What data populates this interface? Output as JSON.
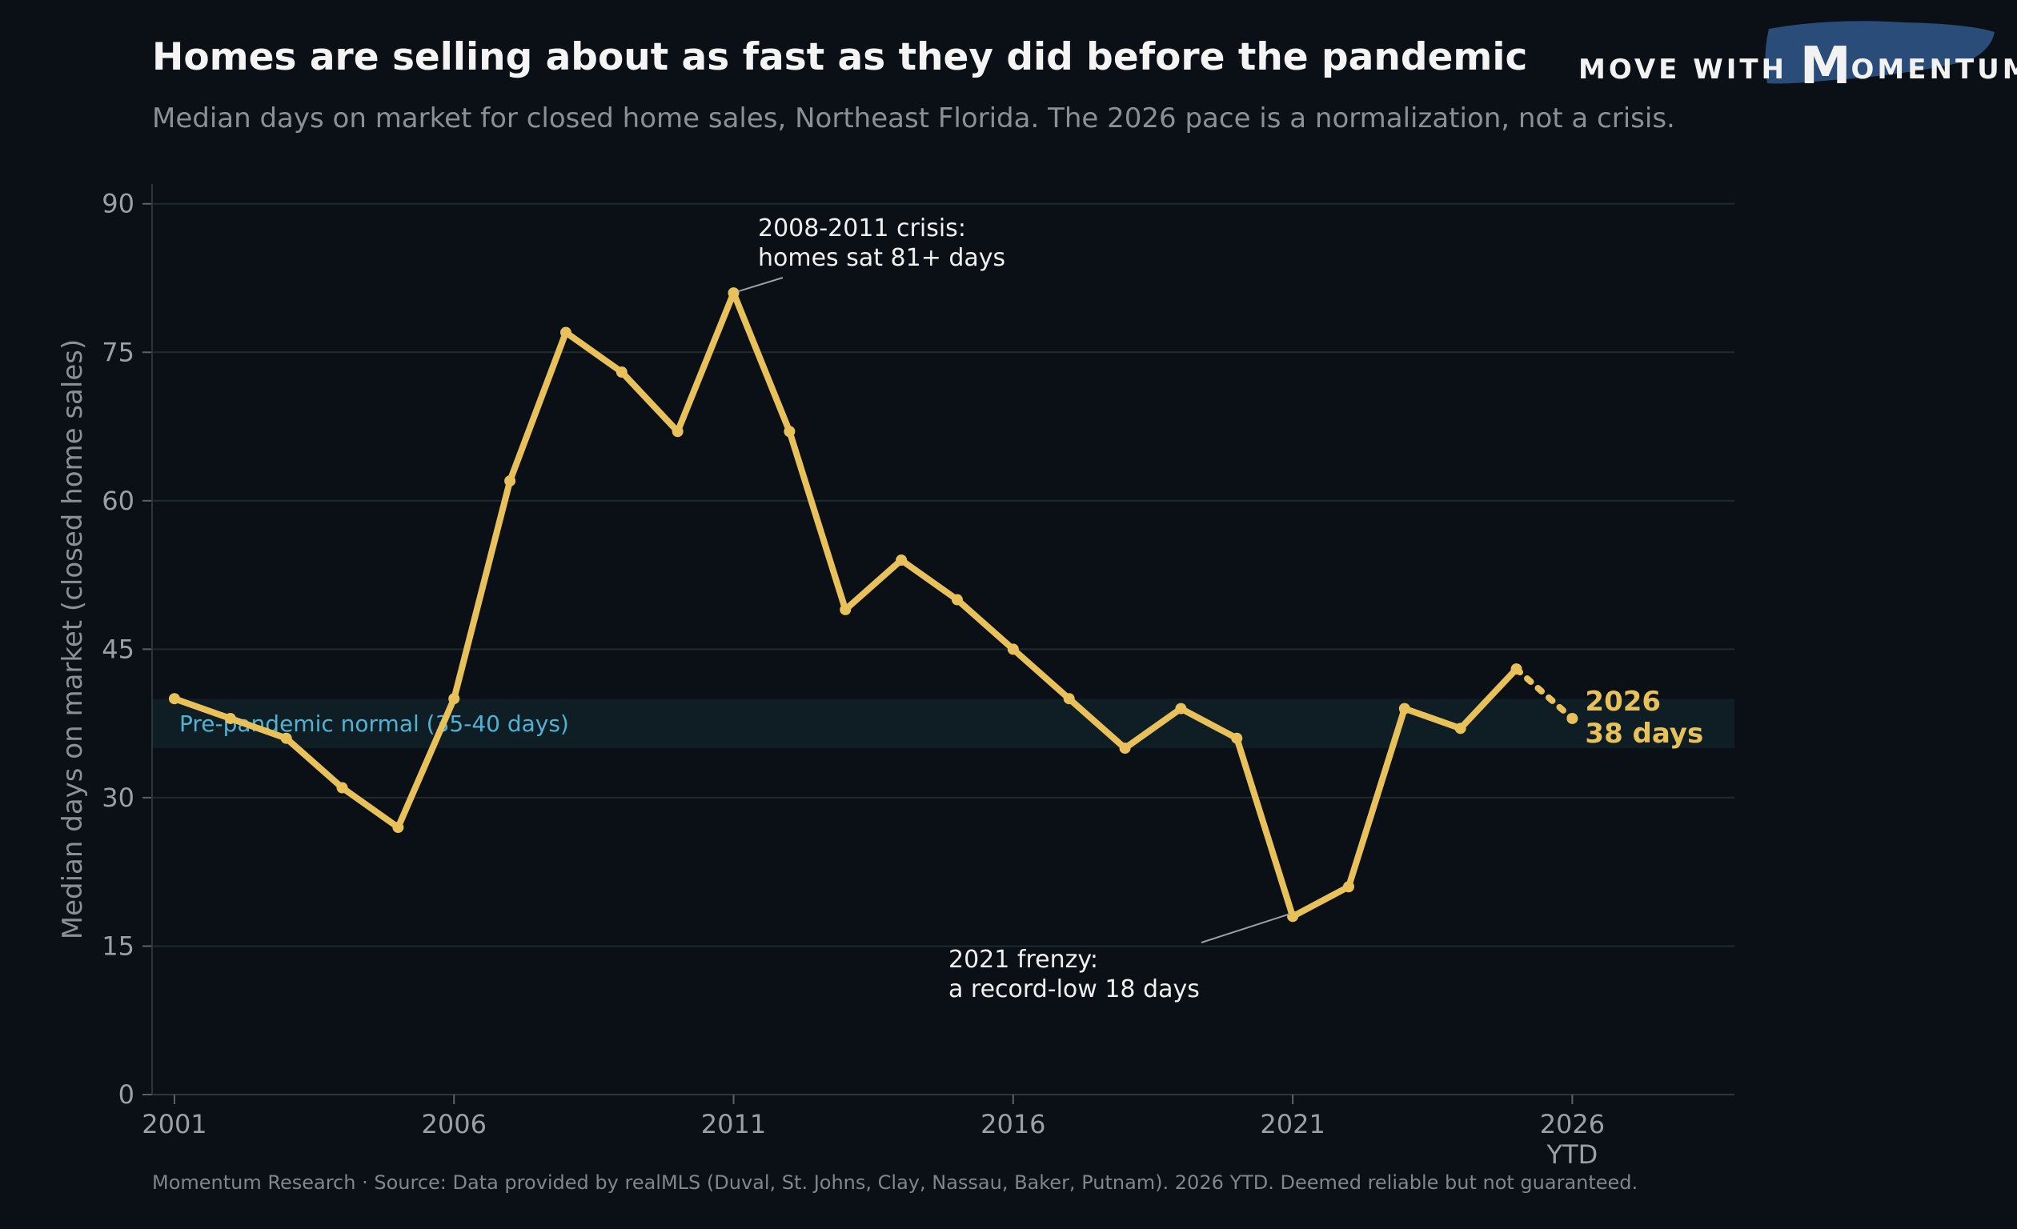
{
  "title": "Homes are selling about as fast as they did before the pandemic",
  "subtitle": "Median days on market for closed home sales, Northeast Florida. The 2026 pace is a normalization, not a crisis.",
  "footer": "Momentum Research  ·  Source: Data provided by realMLS (Duval, St. Johns, Clay, Nassau, Baker, Putnam). 2026 YTD. Deemed reliable but not guaranteed.",
  "logo": {
    "prefix": "MOVE WITH ",
    "initial": "M",
    "rest": "OMENTUM"
  },
  "colors": {
    "background": "#0b1016",
    "line": "#e8c15a",
    "band": "#0f1d24",
    "band_label": "#4fb3d4",
    "grid": "#1f2a31"
  },
  "chart_data": {
    "type": "line",
    "ylabel": "Median days on market (closed home sales)",
    "xlim": [
      2000.6,
      2028.9
    ],
    "ylim": [
      0,
      92
    ],
    "x_ticks": [
      2001,
      2006,
      2011,
      2016,
      2021,
      2026
    ],
    "x_tick_labels": [
      "2001",
      "2006",
      "2011",
      "2016",
      "2021",
      "2026"
    ],
    "x_tick_sublabel": {
      "x": 2026,
      "text": "YTD"
    },
    "y_ticks": [
      0,
      15,
      30,
      45,
      60,
      75,
      90
    ],
    "grid": "horizontal",
    "band": {
      "from": 35,
      "to": 40,
      "label": "Pre-pandemic normal (35-40 days)"
    },
    "series": [
      {
        "x": [
          2001,
          2002,
          2003,
          2004,
          2005,
          2006,
          2007,
          2008,
          2009,
          2010,
          2011,
          2012,
          2013,
          2014,
          2015,
          2016,
          2017,
          2018,
          2019,
          2020,
          2021,
          2022,
          2023,
          2024,
          2025
        ],
        "values": [
          40,
          38,
          36,
          31,
          27,
          40,
          62,
          77,
          73,
          67,
          81,
          67,
          49,
          54,
          50,
          45,
          40,
          35,
          39,
          36,
          18,
          21,
          39,
          37,
          43
        ]
      }
    ],
    "ytd_point": {
      "x": 2026,
      "value": 38,
      "label_year": "2026",
      "label_value": "38 days"
    },
    "annotations": [
      {
        "lines": [
          "2008-2011 crisis:",
          "homes sat 81+ days"
        ],
        "target_x": 2011,
        "target_y": 81
      },
      {
        "lines": [
          "2021 frenzy:",
          "a record-low 18 days"
        ],
        "target_x": 2021,
        "target_y": 18
      }
    ]
  }
}
